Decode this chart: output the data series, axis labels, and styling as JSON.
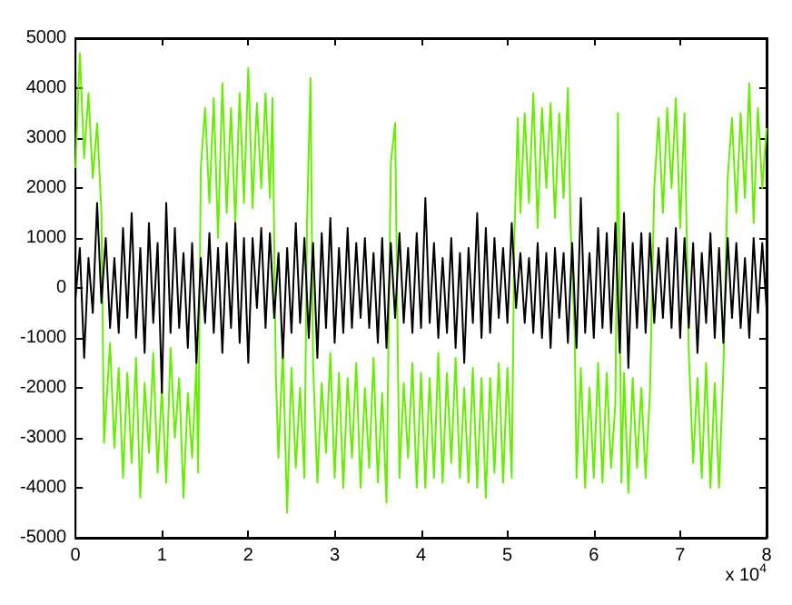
{
  "chart_data": {
    "type": "line",
    "xlim": [
      0,
      8
    ],
    "xticks": [
      0,
      1,
      2,
      3,
      4,
      5,
      6,
      7,
      8
    ],
    "ylim": [
      -5000,
      5000
    ],
    "yticks": [
      -5000,
      -4000,
      -3000,
      -2000,
      -1000,
      0,
      1000,
      2000,
      3000,
      4000,
      5000
    ],
    "grid": false,
    "marker": "none",
    "line_style": "solid",
    "annotations": [
      "x 10$^{4}$"
    ],
    "series": [
      {
        "color": "#66ee00",
        "x": [
          0,
          0.05,
          0.1,
          0.15,
          0.2,
          0.25,
          0.3,
          0.33,
          0.4,
          0.45,
          0.5,
          0.55,
          0.6,
          0.65,
          0.7,
          0.75,
          0.8,
          0.85,
          0.9,
          0.95,
          1.0,
          1.05,
          1.1,
          1.15,
          1.2,
          1.25,
          1.3,
          1.35,
          1.4,
          1.42,
          1.45,
          1.5,
          1.55,
          1.6,
          1.65,
          1.7,
          1.75,
          1.8,
          1.85,
          1.9,
          1.95,
          2.0,
          2.05,
          2.1,
          2.15,
          2.2,
          2.25,
          2.28,
          2.32,
          2.35,
          2.4,
          2.45,
          2.5,
          2.55,
          2.6,
          2.65,
          2.68,
          2.72,
          2.75,
          2.8,
          2.85,
          2.9,
          2.95,
          3.0,
          3.05,
          3.1,
          3.15,
          3.2,
          3.25,
          3.3,
          3.35,
          3.4,
          3.45,
          3.5,
          3.55,
          3.6,
          3.65,
          3.7,
          3.73,
          3.75,
          3.8,
          3.85,
          3.9,
          3.95,
          4.0,
          4.05,
          4.1,
          4.15,
          4.2,
          4.25,
          4.3,
          4.35,
          4.4,
          4.45,
          4.5,
          4.55,
          4.6,
          4.65,
          4.7,
          4.75,
          4.8,
          4.85,
          4.9,
          4.95,
          5.0,
          5.05,
          5.08,
          5.12,
          5.15,
          5.2,
          5.25,
          5.3,
          5.35,
          5.4,
          5.45,
          5.5,
          5.55,
          5.6,
          5.65,
          5.7,
          5.73,
          5.78,
          5.8,
          5.85,
          5.9,
          5.95,
          6.0,
          6.05,
          6.1,
          6.15,
          6.2,
          6.25,
          6.28,
          6.32,
          6.35,
          6.4,
          6.45,
          6.5,
          6.55,
          6.6,
          6.65,
          6.7,
          6.75,
          6.8,
          6.85,
          6.9,
          6.95,
          7.0,
          7.05,
          7.1,
          7.15,
          7.2,
          7.25,
          7.3,
          7.35,
          7.4,
          7.45,
          7.5,
          7.55,
          7.6,
          7.65,
          7.7,
          7.75,
          7.8,
          7.85,
          7.9,
          7.95,
          8.0
        ],
        "values": [
          2400,
          4700,
          2600,
          3900,
          2200,
          3300,
          1500,
          -3100,
          -1100,
          -3200,
          -1600,
          -3800,
          -1700,
          -3500,
          -1400,
          -4200,
          -1900,
          -3300,
          -1300,
          -3700,
          -2000,
          -3900,
          -1200,
          -3000,
          -1800,
          -4200,
          -2100,
          -3400,
          -1500,
          -3700,
          2400,
          3600,
          1700,
          3800,
          1000,
          4100,
          1500,
          3600,
          1300,
          3900,
          1700,
          4400,
          1600,
          3700,
          2000,
          3900,
          1800,
          3800,
          -1800,
          -3400,
          -1200,
          -4500,
          -1600,
          -3600,
          -2000,
          -3800,
          1300,
          4200,
          -1500,
          -3900,
          -1900,
          -3300,
          -1300,
          -3800,
          -1700,
          -4000,
          -1800,
          -3400,
          -1500,
          -4000,
          -2000,
          -3600,
          -1400,
          -3900,
          -2100,
          -4300,
          2500,
          3300,
          -1200,
          -3800,
          -1900,
          -3400,
          -1500,
          -4000,
          -1700,
          -4000,
          -1800,
          -3800,
          -1300,
          -3900,
          -1700,
          -3500,
          -1400,
          -3800,
          -2000,
          -3900,
          -1600,
          -4000,
          -1800,
          -4200,
          -1800,
          -3700,
          -1500,
          -3900,
          -1600,
          -3800,
          1000,
          3400,
          1500,
          3500,
          1700,
          3900,
          1200,
          3600,
          2000,
          3700,
          1400,
          3500,
          1800,
          4000,
          1300,
          -1000,
          -3800,
          -1600,
          -4000,
          -2000,
          -3800,
          -1500,
          -3900,
          -1700,
          -3600,
          -2300,
          3500,
          -3900,
          -1700,
          -4100,
          -1800,
          -3600,
          -2000,
          -3800,
          -2100,
          2000,
          3400,
          1500,
          3600,
          2000,
          3800,
          1200,
          3500,
          -1300,
          -3500,
          -1800,
          -3800,
          -1500,
          -4000,
          -1900,
          -4000,
          -1600,
          2200,
          3400,
          1500,
          3500,
          1800,
          4100,
          1300,
          3600,
          2000,
          3200
        ]
      },
      {
        "color": "#000000",
        "x": [
          0,
          0.05,
          0.1,
          0.15,
          0.2,
          0.25,
          0.3,
          0.35,
          0.4,
          0.45,
          0.5,
          0.55,
          0.6,
          0.65,
          0.7,
          0.75,
          0.8,
          0.85,
          0.9,
          0.95,
          1.0,
          1.05,
          1.1,
          1.15,
          1.2,
          1.25,
          1.3,
          1.35,
          1.4,
          1.45,
          1.5,
          1.55,
          1.6,
          1.65,
          1.7,
          1.75,
          1.8,
          1.85,
          1.9,
          1.95,
          2.0,
          2.05,
          2.1,
          2.15,
          2.2,
          2.25,
          2.3,
          2.35,
          2.4,
          2.45,
          2.5,
          2.55,
          2.6,
          2.65,
          2.7,
          2.75,
          2.8,
          2.85,
          2.9,
          2.95,
          3.0,
          3.05,
          3.1,
          3.15,
          3.2,
          3.25,
          3.3,
          3.35,
          3.4,
          3.45,
          3.5,
          3.55,
          3.6,
          3.65,
          3.7,
          3.75,
          3.8,
          3.85,
          3.9,
          3.95,
          4.0,
          4.05,
          4.1,
          4.15,
          4.2,
          4.25,
          4.3,
          4.35,
          4.4,
          4.45,
          4.5,
          4.55,
          4.6,
          4.65,
          4.7,
          4.75,
          4.8,
          4.85,
          4.9,
          4.95,
          5.0,
          5.05,
          5.1,
          5.15,
          5.2,
          5.25,
          5.3,
          5.35,
          5.4,
          5.45,
          5.5,
          5.55,
          5.6,
          5.65,
          5.7,
          5.75,
          5.8,
          5.85,
          5.9,
          5.95,
          6.0,
          6.05,
          6.1,
          6.15,
          6.2,
          6.25,
          6.3,
          6.35,
          6.4,
          6.45,
          6.5,
          6.55,
          6.6,
          6.65,
          6.7,
          6.75,
          6.8,
          6.85,
          6.9,
          6.95,
          7.0,
          7.05,
          7.1,
          7.15,
          7.2,
          7.25,
          7.3,
          7.35,
          7.4,
          7.45,
          7.5,
          7.55,
          7.6,
          7.65,
          7.7,
          7.75,
          7.8,
          7.85,
          7.9,
          7.95,
          8.0
        ],
        "values": [
          -200,
          800,
          -1400,
          600,
          -500,
          1700,
          -300,
          1000,
          -800,
          600,
          -900,
          1200,
          -600,
          1500,
          -1000,
          800,
          -1300,
          1300,
          -700,
          900,
          -2100,
          1700,
          -900,
          1200,
          -800,
          700,
          -1200,
          900,
          -1500,
          600,
          -700,
          1100,
          -900,
          800,
          -1300,
          900,
          -800,
          1300,
          -1100,
          1000,
          -1500,
          1000,
          -400,
          1200,
          -800,
          1100,
          -600,
          700,
          -1400,
          800,
          -900,
          1300,
          -700,
          1000,
          -1000,
          900,
          -1400,
          1100,
          -800,
          1400,
          -1100,
          800,
          -900,
          1200,
          -800,
          900,
          -600,
          1000,
          -800,
          700,
          -1100,
          1000,
          -1200,
          900,
          -600,
          1100,
          -700,
          800,
          -900,
          1100,
          -800,
          1800,
          -700,
          900,
          -1000,
          600,
          -900,
          1000,
          -1200,
          700,
          -1500,
          800,
          -700,
          1500,
          -1000,
          1200,
          -900,
          1000,
          -600,
          800,
          -700,
          1300,
          -400,
          700,
          -700,
          600,
          -900,
          900,
          -1000,
          700,
          -1200,
          800,
          -600,
          700,
          -1100,
          900,
          -1200,
          1800,
          -900,
          700,
          -1000,
          1200,
          -800,
          1100,
          -900,
          1300,
          -1300,
          1500,
          -1600,
          900,
          -800,
          1100,
          -900,
          1100,
          -700,
          800,
          -600,
          1000,
          -800,
          1200,
          -1000,
          1000,
          -800,
          900,
          -1300,
          700,
          -700,
          1100,
          -1000,
          800,
          -1100,
          1000,
          -600,
          900,
          -800,
          600,
          -1000,
          1000,
          -500,
          900,
          -400
        ]
      }
    ]
  }
}
